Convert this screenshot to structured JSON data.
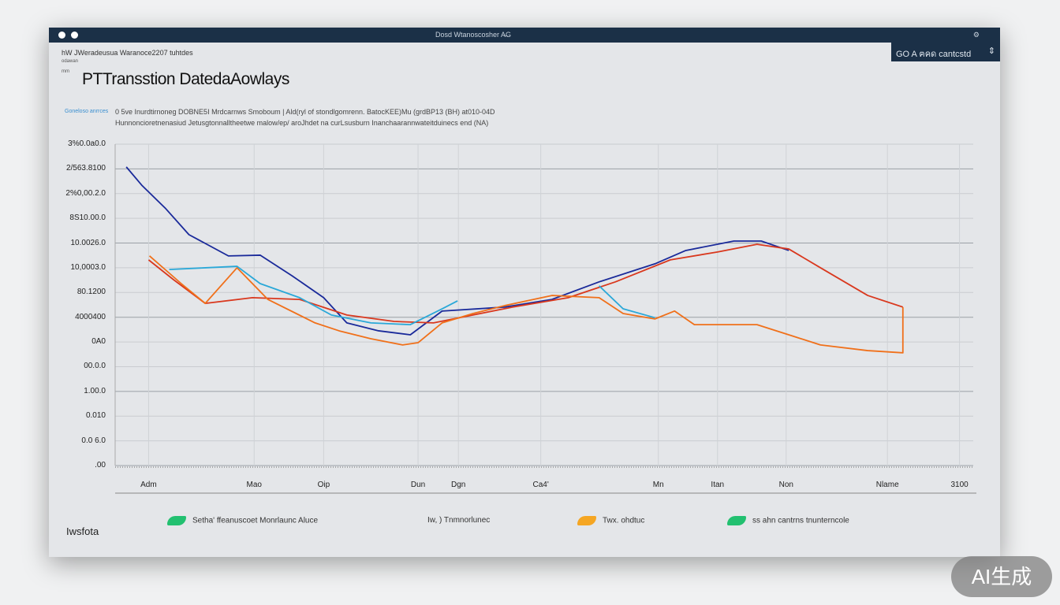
{
  "window": {
    "titlebar_text": "Dosd  Wtanoscosher  A̶G",
    "panel_text": "GO  A ฅคด cantcstd",
    "breadcrumb": "hW JWeradeusua Waranoce2207 tuhtdes",
    "side_label_1": "odawan",
    "side_label_2": "mm"
  },
  "header": {
    "title": "PTTransstion DatedaAowlays",
    "subtitle_line1": "0  5ve Inurdtirnoneg DOBNE5I Mrdcarnws Smoboum |   Ald(ryl of stondlgomrenn. BatocKEE)Mu (grdBP13 (BH) at010-04D",
    "subtitle_link": "Goneloso anrrces",
    "subtitle_line2": "Hunnoncioretnenasiud Jetusgtonnalltheetwe malow/ep/ aroJhdet na curLsusburn Inanchaarannwateitduinecs end (NA)"
  },
  "footer_label": "Iwsfota",
  "legend": [
    {
      "label": "Setha' ffeanuscoet Monrlaunc Aluce",
      "color": "#22c070"
    },
    {
      "label": "Iw, ) Tnmnorlunec",
      "color": null
    },
    {
      "label": "Twx. ohdtuc",
      "color": "#f5a623"
    },
    {
      "label": "ss ahn cantrns tnunterncole",
      "color": "#22c070"
    }
  ],
  "badge": "AI生成",
  "chart_data": {
    "type": "line",
    "title": "PTTransstion DatedaAowlays",
    "xlabel": "",
    "ylabel": "",
    "xlim": [
      0,
      100
    ],
    "ylim": [
      0,
      13
    ],
    "grid": true,
    "y_ticks": [
      {
        "v": 13,
        "label": "3%0.0a0.0"
      },
      {
        "v": 12,
        "label": "2/563.8100"
      },
      {
        "v": 11,
        "label": "2%0,00.2.0"
      },
      {
        "v": 10,
        "label": "8S10.00.0"
      },
      {
        "v": 9,
        "label": "10.0026.0"
      },
      {
        "v": 8,
        "label": "10,0003.0"
      },
      {
        "v": 7,
        "label": "80.1200"
      },
      {
        "v": 6,
        "label": "4000400"
      },
      {
        "v": 5,
        "label": "0A0"
      },
      {
        "v": 4,
        "label": "00.0.0"
      },
      {
        "v": 3,
        "label": "1.00.0"
      },
      {
        "v": 2,
        "label": "0.010"
      },
      {
        "v": 1,
        "label": "0.0 6.0"
      },
      {
        "v": 0,
        "label": ".00"
      }
    ],
    "x_ticks": [
      {
        "v": 3.9,
        "label": "Adm"
      },
      {
        "v": 16.2,
        "label": "Mao"
      },
      {
        "v": 24.3,
        "label": "Oip"
      },
      {
        "v": 35.3,
        "label": "Dun"
      },
      {
        "v": 40.0,
        "label": "Dgn"
      },
      {
        "v": 49.6,
        "label": "Ca4'"
      },
      {
        "v": 63.3,
        "label": "Mn"
      },
      {
        "v": 70.2,
        "label": "Itan"
      },
      {
        "v": 78.2,
        "label": "Non"
      },
      {
        "v": 90.0,
        "label": "Nlame"
      },
      {
        "v": 98.4,
        "label": "3100"
      }
    ],
    "series": [
      {
        "name": "navy",
        "color": "#1a2a9a",
        "segments": [
          [
            [
              1.3,
              12.08
            ],
            [
              3.1,
              11.34
            ],
            [
              5.9,
              10.39
            ],
            [
              8.6,
              9.34
            ],
            [
              13.2,
              8.48
            ],
            [
              16.9,
              8.51
            ],
            [
              20.6,
              7.68
            ],
            [
              24.3,
              6.79
            ],
            [
              27.0,
              5.77
            ],
            [
              30.7,
              5.45
            ],
            [
              34.4,
              5.29
            ],
            [
              38.1,
              6.25
            ],
            [
              45.4,
              6.41
            ],
            [
              50.9,
              6.72
            ],
            [
              56.4,
              7.43
            ],
            [
              62.9,
              8.16
            ],
            [
              66.5,
              8.7
            ],
            [
              72.1,
              9.08
            ],
            [
              75.3,
              9.08
            ],
            [
              78.5,
              8.7
            ]
          ]
        ]
      },
      {
        "name": "red",
        "color": "#d9381e",
        "segments": [
          [
            [
              3.9,
              8.32
            ],
            [
              6.8,
              7.52
            ],
            [
              10.5,
              6.56
            ],
            [
              16.0,
              6.79
            ],
            [
              21.5,
              6.72
            ],
            [
              27.0,
              6.09
            ],
            [
              32.5,
              5.83
            ],
            [
              37.1,
              5.77
            ],
            [
              41.7,
              6.09
            ],
            [
              46.3,
              6.41
            ],
            [
              52.8,
              6.79
            ],
            [
              58.3,
              7.43
            ],
            [
              64.7,
              8.32
            ],
            [
              70.2,
              8.64
            ],
            [
              74.8,
              8.95
            ],
            [
              78.5,
              8.76
            ],
            [
              82.2,
              8.0
            ],
            [
              87.7,
              6.88
            ],
            [
              91.8,
              6.41
            ]
          ]
        ]
      },
      {
        "name": "orange",
        "color": "#f0701a",
        "segments": [
          [
            [
              4.0,
              8.48
            ],
            [
              7.7,
              7.36
            ],
            [
              10.5,
              6.56
            ],
            [
              14.2,
              8.0
            ],
            [
              17.8,
              6.72
            ],
            [
              23.3,
              5.77
            ],
            [
              26.1,
              5.45
            ],
            [
              29.8,
              5.13
            ],
            [
              33.5,
              4.88
            ],
            [
              35.3,
              4.97
            ],
            [
              38.1,
              5.77
            ],
            [
              41.7,
              6.15
            ],
            [
              45.4,
              6.47
            ],
            [
              50.9,
              6.88
            ],
            [
              56.4,
              6.79
            ],
            [
              59.2,
              6.15
            ],
            [
              62.9,
              5.93
            ],
            [
              65.2,
              6.25
            ],
            [
              67.5,
              5.7
            ],
            [
              74.8,
              5.7
            ],
            [
              79.4,
              5.19
            ],
            [
              82.2,
              4.88
            ],
            [
              87.7,
              4.65
            ],
            [
              91.8,
              4.56
            ],
            [
              91.8,
              6.41
            ]
          ]
        ]
      },
      {
        "name": "cyan",
        "color": "#2aa8d8",
        "segments": [
          [
            [
              6.3,
              7.93
            ],
            [
              10.5,
              8.0
            ],
            [
              14.2,
              8.06
            ],
            [
              16.9,
              7.36
            ],
            [
              21.5,
              6.79
            ],
            [
              25.2,
              6.09
            ],
            [
              29.8,
              5.77
            ],
            [
              34.4,
              5.7
            ],
            [
              38.1,
              6.34
            ],
            [
              39.9,
              6.66
            ]
          ],
          [
            [
              56.4,
              7.27
            ],
            [
              59.2,
              6.34
            ],
            [
              62.9,
              5.98
            ]
          ]
        ]
      }
    ]
  }
}
